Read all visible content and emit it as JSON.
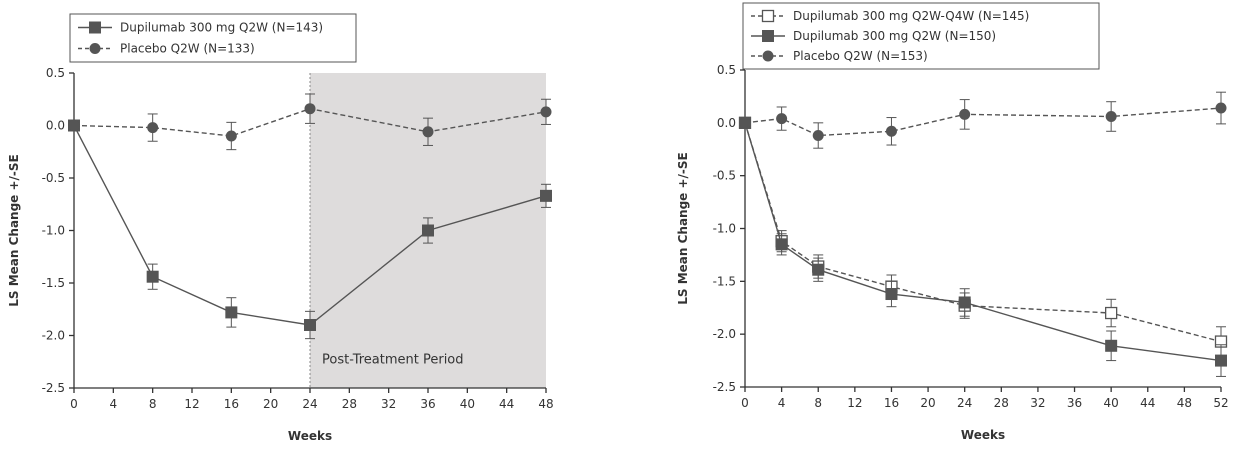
{
  "chart_data": [
    {
      "type": "line",
      "title": "",
      "xlabel": "Weeks",
      "ylabel": "LS Mean Change +/-SE",
      "xlim": [
        0,
        48
      ],
      "ylim": [
        -2.5,
        0.5
      ],
      "x_ticks": [
        0,
        4,
        8,
        12,
        16,
        20,
        24,
        28,
        32,
        36,
        40,
        44,
        48
      ],
      "y_ticks": [
        0.5,
        0.0,
        -0.5,
        -1.0,
        -1.5,
        -2.0,
        -2.5
      ],
      "y_tick_labels": [
        "0.5",
        "0.0",
        "-0.5",
        "-1.0",
        "-1.5",
        "-2.0",
        "-2.5"
      ],
      "legend_position": "top-left",
      "shaded_region": {
        "x_start": 24,
        "x_end": 48,
        "label": "Post-Treatment Period",
        "color": "#dedcdc"
      },
      "series": [
        {
          "name": "Dupilumab 300 mg Q2W (N=143)",
          "marker": "square-filled",
          "line": "solid",
          "x": [
            0,
            8,
            16,
            24,
            36,
            48
          ],
          "y": [
            0.0,
            -1.44,
            -1.78,
            -1.9,
            -1.0,
            -0.67
          ],
          "se": [
            0.0,
            0.12,
            0.14,
            0.13,
            0.12,
            0.11
          ]
        },
        {
          "name": "Placebo Q2W (N=133)",
          "marker": "circle-filled",
          "line": "dashed",
          "x": [
            0,
            8,
            16,
            24,
            36,
            48
          ],
          "y": [
            0.0,
            -0.02,
            -0.1,
            0.16,
            -0.06,
            0.13
          ],
          "se": [
            0.0,
            0.13,
            0.13,
            0.14,
            0.13,
            0.12
          ]
        }
      ]
    },
    {
      "type": "line",
      "title": "",
      "xlabel": "Weeks",
      "ylabel": "LS Mean Change +/-SE",
      "xlim": [
        0,
        52
      ],
      "ylim": [
        -2.5,
        0.5
      ],
      "x_ticks": [
        0,
        4,
        8,
        12,
        16,
        20,
        24,
        28,
        32,
        36,
        40,
        44,
        48,
        52
      ],
      "y_ticks": [
        0.5,
        0.0,
        -0.5,
        -1.0,
        -1.5,
        -2.0,
        -2.5
      ],
      "y_tick_labels": [
        "0.5",
        "0.0",
        "-0.5",
        "-1.0",
        "-1.5",
        "-2.0",
        "-2.5"
      ],
      "legend_position": "top-left",
      "series": [
        {
          "name": "Dupilumab 300 mg Q2W-Q4W (N=145)",
          "marker": "square-open",
          "line": "dashed",
          "x": [
            0,
            4,
            8,
            16,
            24,
            40,
            52
          ],
          "y": [
            0.0,
            -1.12,
            -1.36,
            -1.55,
            -1.73,
            -1.8,
            -2.07
          ],
          "se": [
            0.0,
            0.1,
            0.11,
            0.11,
            0.12,
            0.13,
            0.14
          ]
        },
        {
          "name": "Dupilumab 300 mg Q2W (N=150)",
          "marker": "square-filled",
          "line": "solid",
          "x": [
            0,
            4,
            8,
            16,
            24,
            40,
            52
          ],
          "y": [
            0.0,
            -1.15,
            -1.39,
            -1.62,
            -1.7,
            -2.11,
            -2.25
          ],
          "se": [
            0.0,
            0.1,
            0.11,
            0.12,
            0.13,
            0.14,
            0.15
          ]
        },
        {
          "name": "Placebo Q2W (N=153)",
          "marker": "circle-filled",
          "line": "dashed",
          "x": [
            0,
            4,
            8,
            16,
            24,
            40,
            52
          ],
          "y": [
            0.0,
            0.04,
            -0.12,
            -0.08,
            0.08,
            0.06,
            0.14
          ],
          "se": [
            0.0,
            0.11,
            0.12,
            0.13,
            0.14,
            0.14,
            0.15
          ]
        }
      ]
    }
  ],
  "colors": {
    "series_dark": "#555555",
    "axis": "#333333",
    "shade": "#dedcdc",
    "annotation_line": "#888888"
  }
}
